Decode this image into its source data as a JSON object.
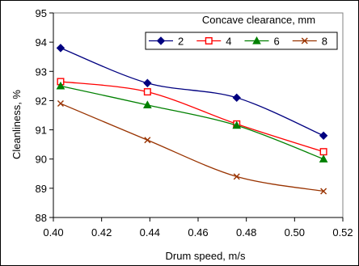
{
  "chart_data": {
    "type": "line",
    "title": "",
    "xlabel": "Drum speed, m/s",
    "ylabel": "Cleanliness, %",
    "xlim": [
      0.4,
      0.52
    ],
    "ylim": [
      88,
      95
    ],
    "x_ticks": [
      "0.40",
      "0.42",
      "0.44",
      "0.46",
      "0.48",
      "0.50",
      "0.52"
    ],
    "y_ticks": [
      "88",
      "89",
      "90",
      "91",
      "92",
      "93",
      "94",
      "95"
    ],
    "grid": false,
    "legend": {
      "title": "Concave clearance, mm",
      "placement": "top-right"
    },
    "series": [
      {
        "name": "2",
        "color": "#000080",
        "marker": "diamond",
        "x": [
          0.403,
          0.439,
          0.476,
          0.512
        ],
        "y": [
          93.8,
          92.6,
          92.1,
          90.8
        ]
      },
      {
        "name": "4",
        "color": "#ff0000",
        "marker": "square-open",
        "x": [
          0.403,
          0.439,
          0.476,
          0.512
        ],
        "y": [
          92.65,
          92.3,
          91.2,
          90.25
        ]
      },
      {
        "name": "6",
        "color": "#008000",
        "marker": "triangle",
        "x": [
          0.403,
          0.439,
          0.476,
          0.512
        ],
        "y": [
          92.5,
          91.85,
          91.15,
          90.0
        ]
      },
      {
        "name": "8",
        "color": "#993300",
        "marker": "x",
        "x": [
          0.403,
          0.439,
          0.476,
          0.512
        ],
        "y": [
          91.9,
          90.65,
          89.4,
          88.9
        ]
      }
    ]
  }
}
